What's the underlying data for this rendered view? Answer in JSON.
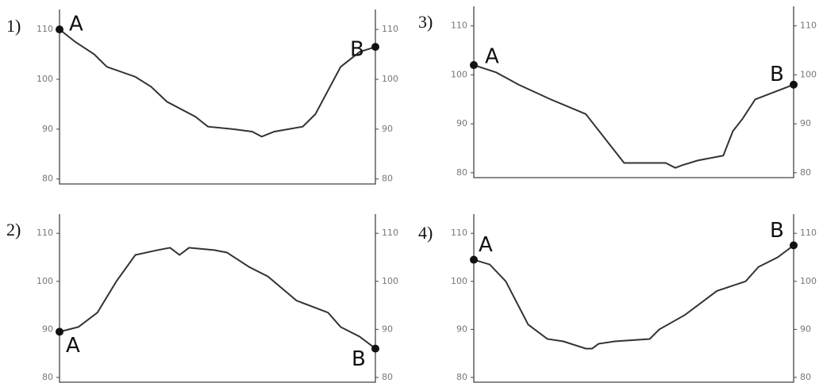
{
  "chart_data": [
    {
      "type": "line",
      "label": "1)",
      "start_label": "A",
      "end_label": "B",
      "color": "#333333",
      "x": [
        0,
        5,
        11,
        15,
        24,
        29,
        34,
        43,
        47,
        55,
        61,
        64,
        68,
        77,
        81,
        89,
        95,
        100
      ],
      "values": [
        110,
        107.5,
        105,
        102.5,
        100.5,
        98.5,
        95.5,
        92.5,
        90.5,
        90,
        89.5,
        88.5,
        89.5,
        90.5,
        93,
        102.5,
        105.5,
        106.5
      ],
      "xlim": [
        0,
        100
      ],
      "ylim": [
        79,
        114
      ],
      "yticks": [
        80,
        90,
        100,
        110
      ]
    },
    {
      "type": "line",
      "label": "2)",
      "start_label": "A",
      "end_label": "B",
      "color": "#333333",
      "x": [
        0,
        6,
        12,
        18,
        24,
        31,
        35,
        38,
        41,
        49,
        53,
        60,
        66,
        75,
        85,
        89,
        95,
        100
      ],
      "values": [
        89.5,
        90.5,
        93.5,
        100,
        105.5,
        106.5,
        107,
        105.5,
        107,
        106.5,
        106,
        103,
        101,
        96,
        93.5,
        90.5,
        88.5,
        86
      ],
      "xlim": [
        0,
        100
      ],
      "ylim": [
        79,
        114
      ],
      "yticks": [
        80,
        90,
        100,
        110
      ]
    },
    {
      "type": "line",
      "label": "3)",
      "start_label": "A",
      "end_label": "B",
      "color": "#333333",
      "x": [
        0,
        7,
        14,
        24,
        35,
        47,
        53,
        60,
        63,
        65,
        70,
        78,
        81,
        84,
        88,
        100
      ],
      "values": [
        102,
        100.5,
        98,
        95,
        92,
        82,
        82,
        82,
        81,
        81.5,
        82.5,
        83.5,
        88.5,
        91,
        95,
        98
      ],
      "xlim": [
        0,
        100
      ],
      "ylim": [
        79,
        114
      ],
      "yticks": [
        80,
        90,
        100,
        110
      ]
    },
    {
      "type": "line",
      "label": "4)",
      "start_label": "A",
      "end_label": "B",
      "color": "#333333",
      "x": [
        0,
        5,
        10,
        17,
        23,
        28,
        35,
        37,
        39,
        44,
        55,
        58,
        66,
        76,
        85,
        89,
        95,
        100
      ],
      "values": [
        104.5,
        103.5,
        100,
        91,
        88,
        87.5,
        86,
        86,
        87,
        87.5,
        88,
        90,
        93,
        98,
        100,
        103,
        105,
        107.5
      ],
      "xlim": [
        0,
        100
      ],
      "ylim": [
        79,
        114
      ],
      "yticks": [
        80,
        90,
        100,
        110
      ]
    }
  ]
}
